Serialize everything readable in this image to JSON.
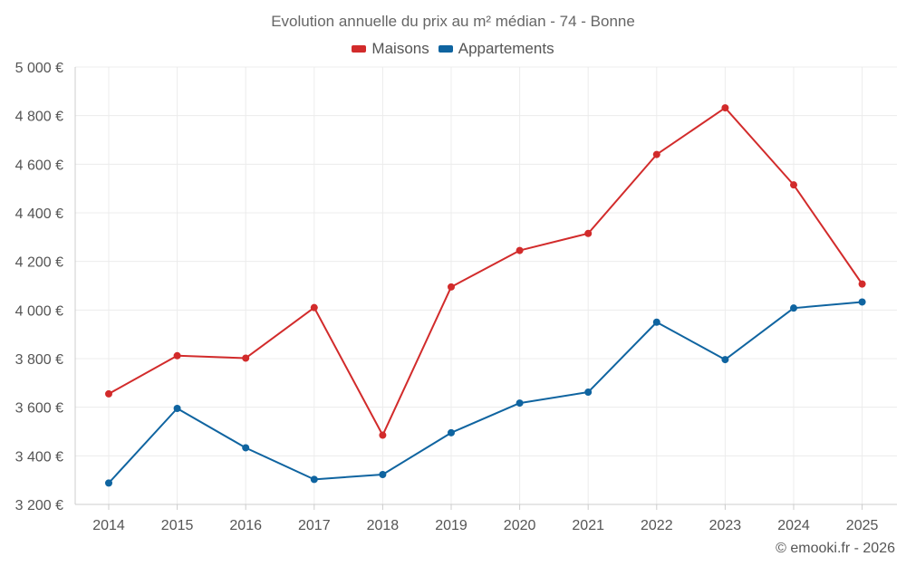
{
  "title": "Evolution annuelle du prix au m² médian - 74 - Bonne",
  "footer": "© emooki.fr - 2026",
  "colors": {
    "maisons": "#d22b2b",
    "appartements": "#0f64a0",
    "grid": "#ececec",
    "axis": "#cccccc",
    "text": "#555555"
  },
  "chart_data": {
    "type": "line",
    "title": "Evolution annuelle du prix au m² médian - 74 - Bonne",
    "xlabel": "",
    "ylabel": "",
    "categories": [
      "2014",
      "2015",
      "2016",
      "2017",
      "2018",
      "2019",
      "2020",
      "2021",
      "2022",
      "2023",
      "2024",
      "2025"
    ],
    "ylim": [
      3200,
      5000
    ],
    "yticks": [
      3200,
      3400,
      3600,
      3800,
      4000,
      4200,
      4400,
      4600,
      4800,
      5000
    ],
    "ytick_labels": [
      "3 200 €",
      "3 400 €",
      "3 600 €",
      "3 800 €",
      "4 000 €",
      "4 200 €",
      "4 400 €",
      "4 600 €",
      "4 800 €",
      "5 000 €"
    ],
    "grid": true,
    "legend_position": "top-center",
    "series": [
      {
        "name": "Maisons",
        "color": "#d22b2b",
        "values": [
          3655,
          3812,
          3802,
          4010,
          3485,
          4095,
          4245,
          4315,
          4640,
          4832,
          4515,
          4107
        ]
      },
      {
        "name": "Appartements",
        "color": "#0f64a0",
        "values": [
          3288,
          3595,
          3433,
          3303,
          3323,
          3495,
          3617,
          3662,
          3950,
          3796,
          4008,
          4033
        ]
      }
    ]
  }
}
